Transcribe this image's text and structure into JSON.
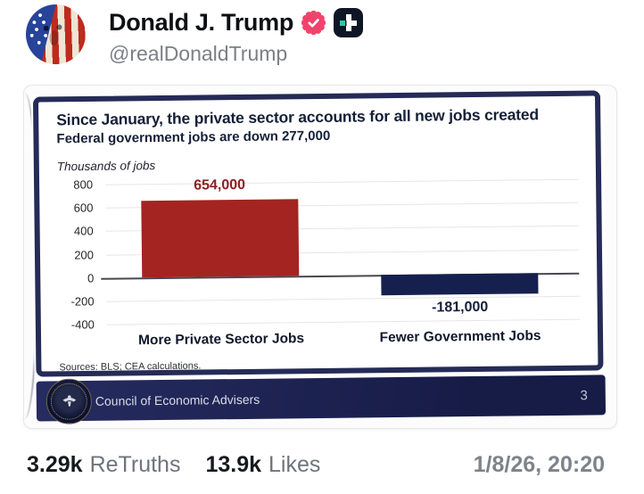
{
  "post": {
    "author": {
      "display_name": "Donald J. Trump",
      "handle": "@realDonaldTrump"
    },
    "stats": {
      "retruths_value": "3.29k",
      "retruths_label": "ReTruths",
      "likes_value": "13.9k",
      "likes_label": "Likes",
      "timestamp": "1/8/26, 20:20"
    }
  },
  "slide": {
    "title": "Since January, the private sector accounts for all new jobs created",
    "subtitle": "Federal government jobs are down 277,000",
    "unit_label": "Thousands of jobs",
    "sources": "Sources: BLS; CEA calculations.",
    "footer_org": "Council of Economic Advisers",
    "footer_page": "3"
  },
  "chart_data": {
    "type": "bar",
    "title": "Since January, the private sector accounts for all new jobs created",
    "subtitle": "Federal government jobs are down 277,000",
    "ylabel": "Thousands of jobs",
    "categories": [
      "More Private Sector Jobs",
      "Fewer Government Jobs"
    ],
    "values": [
      654,
      -181
    ],
    "value_labels": [
      "654,000",
      "-181,000"
    ],
    "bar_colors": [
      "#A32420",
      "#16204E"
    ],
    "value_label_colors": [
      "#8E1F22",
      "#15203C"
    ],
    "ylim": [
      -400,
      800
    ],
    "yticks": [
      800,
      600,
      400,
      200,
      0,
      -200,
      -400
    ],
    "grid": true,
    "legend": false
  },
  "icons": {
    "avatar": "trump-flag-portrait",
    "verified": "verified-badge",
    "truth_plus": "truth-social-plus-logo",
    "seal": "council-of-economic-advisers-seal"
  },
  "colors": {
    "verified_badge": "#F0436C",
    "truth_icon_bg": "#0E1626",
    "truth_icon_teal": "#2BC9A4",
    "slide_border_navy": "#252B57",
    "slide_footer_navy": "#1B2150",
    "bar_red": "#A32420",
    "bar_navy": "#16204E",
    "handle_gray": "#7B8086"
  }
}
